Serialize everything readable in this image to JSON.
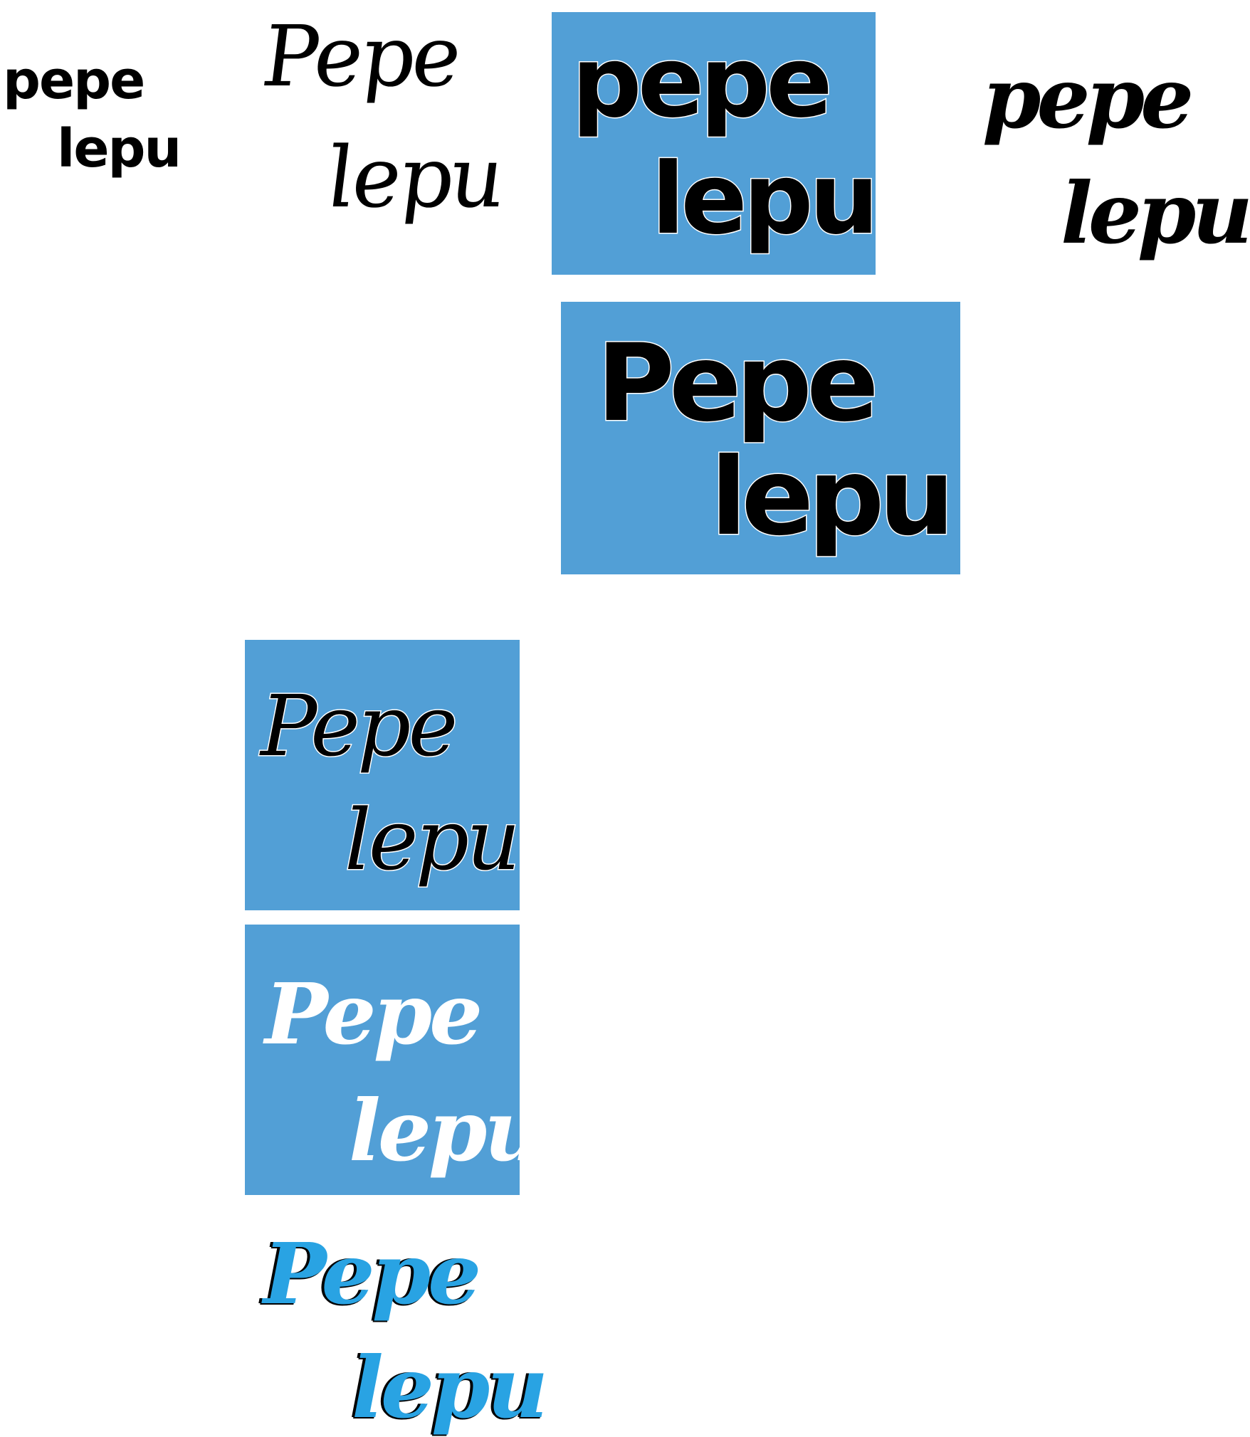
{
  "colors": {
    "background": "#ffffff",
    "panel_blue": "#529fd6",
    "text_black": "#000000",
    "text_white": "#ffffff",
    "text_blue": "#29a3e3"
  },
  "variants": [
    {
      "line1": "pepe",
      "line2": "lepu"
    },
    {
      "line1": "Pepe",
      "line2": "lepu"
    },
    {
      "line1": "pepe",
      "line2": "lepu"
    },
    {
      "line1": "pepe",
      "line2": "lepu"
    },
    {
      "line1": "Pepe",
      "line2": "lepu"
    },
    {
      "line1": "Pepe",
      "line2": "lepu"
    },
    {
      "line1": "Pepe",
      "line2": "lepu"
    },
    {
      "line1": "Pepe",
      "line2": "lepu"
    }
  ]
}
